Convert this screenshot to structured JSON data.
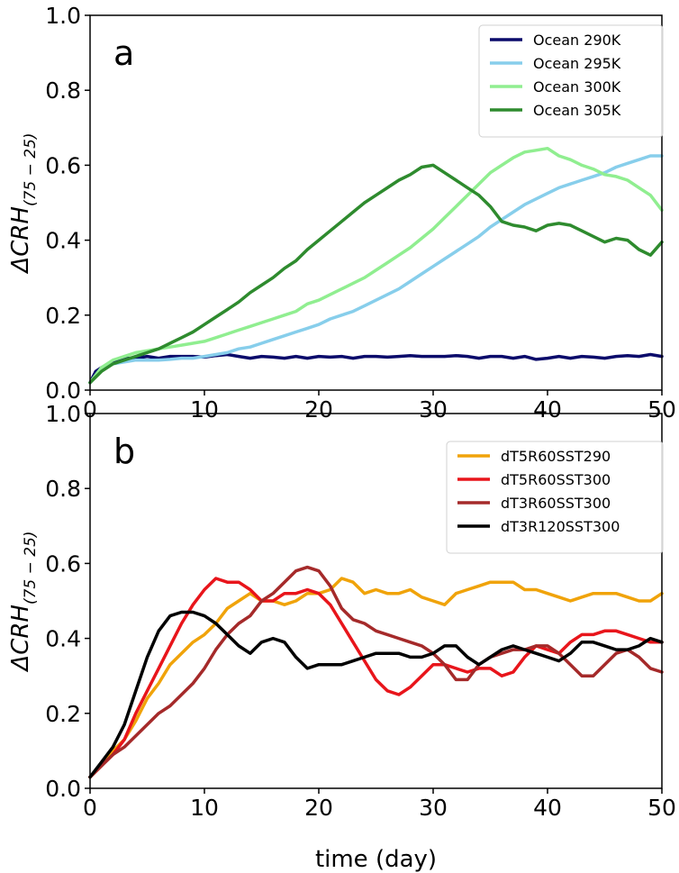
{
  "chart_data": [
    {
      "type": "line",
      "panel_label": "a",
      "xlabel": "",
      "ylabel": "ΔCRH",
      "ylabel_sub": "(75 − 25)",
      "xlim": [
        0,
        50
      ],
      "ylim": [
        0,
        1.0
      ],
      "xticks": [
        "0",
        "10",
        "20",
        "30",
        "40",
        "50"
      ],
      "yticks": [
        "0.0",
        "0.2",
        "0.4",
        "0.6",
        "0.8",
        "1.0"
      ],
      "legend_position": "top-right",
      "grid": false,
      "series": [
        {
          "name": "Ocean 290K",
          "color": "#0b0b6b",
          "x": [
            0,
            0.5,
            1,
            2,
            3,
            4,
            5,
            6,
            7,
            8,
            9,
            10,
            11,
            12,
            13,
            14,
            15,
            16,
            17,
            18,
            19,
            20,
            21,
            22,
            23,
            24,
            25,
            26,
            27,
            28,
            29,
            30,
            31,
            32,
            33,
            34,
            35,
            36,
            37,
            38,
            39,
            40,
            41,
            42,
            43,
            44,
            45,
            46,
            47,
            48,
            49,
            50
          ],
          "y": [
            0.02,
            0.05,
            0.06,
            0.075,
            0.085,
            0.085,
            0.09,
            0.085,
            0.09,
            0.09,
            0.09,
            0.088,
            0.092,
            0.095,
            0.09,
            0.085,
            0.09,
            0.088,
            0.085,
            0.09,
            0.085,
            0.09,
            0.088,
            0.09,
            0.085,
            0.09,
            0.09,
            0.088,
            0.09,
            0.092,
            0.09,
            0.09,
            0.09,
            0.092,
            0.09,
            0.085,
            0.09,
            0.09,
            0.085,
            0.09,
            0.082,
            0.085,
            0.09,
            0.085,
            0.09,
            0.088,
            0.085,
            0.09,
            0.092,
            0.09,
            0.095,
            0.09
          ]
        },
        {
          "name": "Ocean 295K",
          "color": "#87ceeb",
          "x": [
            0,
            1,
            2,
            3,
            4,
            5,
            6,
            7,
            8,
            9,
            10,
            11,
            12,
            13,
            14,
            15,
            16,
            17,
            18,
            19,
            20,
            21,
            22,
            23,
            24,
            25,
            26,
            27,
            28,
            29,
            30,
            31,
            32,
            33,
            34,
            35,
            36,
            37,
            38,
            39,
            40,
            41,
            42,
            43,
            44,
            45,
            46,
            47,
            48,
            49,
            50
          ],
          "y": [
            0.02,
            0.06,
            0.07,
            0.075,
            0.08,
            0.08,
            0.08,
            0.082,
            0.085,
            0.085,
            0.09,
            0.095,
            0.1,
            0.11,
            0.115,
            0.125,
            0.135,
            0.145,
            0.155,
            0.165,
            0.175,
            0.19,
            0.2,
            0.21,
            0.225,
            0.24,
            0.255,
            0.27,
            0.29,
            0.31,
            0.33,
            0.35,
            0.37,
            0.39,
            0.41,
            0.435,
            0.455,
            0.475,
            0.495,
            0.51,
            0.525,
            0.54,
            0.55,
            0.56,
            0.57,
            0.58,
            0.595,
            0.605,
            0.615,
            0.625,
            0.625
          ]
        },
        {
          "name": "Ocean 300K",
          "color": "#90ee90",
          "x": [
            0,
            1,
            2,
            3,
            4,
            5,
            6,
            7,
            8,
            9,
            10,
            11,
            12,
            13,
            14,
            15,
            16,
            17,
            18,
            19,
            20,
            21,
            22,
            23,
            24,
            25,
            26,
            27,
            28,
            29,
            30,
            31,
            32,
            33,
            34,
            35,
            36,
            37,
            38,
            39,
            40,
            41,
            42,
            43,
            44,
            45,
            46,
            47,
            48,
            49,
            50
          ],
          "y": [
            0.02,
            0.06,
            0.08,
            0.09,
            0.1,
            0.105,
            0.11,
            0.115,
            0.12,
            0.125,
            0.13,
            0.14,
            0.15,
            0.16,
            0.17,
            0.18,
            0.19,
            0.2,
            0.21,
            0.23,
            0.24,
            0.255,
            0.27,
            0.285,
            0.3,
            0.32,
            0.34,
            0.36,
            0.38,
            0.405,
            0.43,
            0.46,
            0.49,
            0.52,
            0.55,
            0.58,
            0.6,
            0.62,
            0.635,
            0.64,
            0.645,
            0.625,
            0.615,
            0.6,
            0.59,
            0.575,
            0.57,
            0.56,
            0.54,
            0.52,
            0.48
          ]
        },
        {
          "name": "Ocean 305K",
          "color": "#2e8b2e",
          "x": [
            0,
            1,
            2,
            3,
            4,
            5,
            6,
            7,
            8,
            9,
            10,
            11,
            12,
            13,
            14,
            15,
            16,
            17,
            18,
            19,
            20,
            21,
            22,
            23,
            24,
            25,
            26,
            27,
            28,
            29,
            30,
            31,
            32,
            33,
            34,
            35,
            36,
            37,
            38,
            39,
            40,
            41,
            42,
            43,
            44,
            45,
            46,
            47,
            48,
            49,
            50
          ],
          "y": [
            0.02,
            0.05,
            0.07,
            0.08,
            0.09,
            0.1,
            0.11,
            0.125,
            0.14,
            0.155,
            0.175,
            0.195,
            0.215,
            0.235,
            0.26,
            0.28,
            0.3,
            0.325,
            0.345,
            0.375,
            0.4,
            0.425,
            0.45,
            0.475,
            0.5,
            0.52,
            0.54,
            0.56,
            0.575,
            0.595,
            0.6,
            0.58,
            0.56,
            0.54,
            0.52,
            0.49,
            0.45,
            0.44,
            0.435,
            0.425,
            0.44,
            0.445,
            0.44,
            0.425,
            0.41,
            0.395,
            0.405,
            0.4,
            0.375,
            0.36,
            0.395
          ]
        }
      ]
    },
    {
      "type": "line",
      "panel_label": "b",
      "xlabel": "time (day)",
      "ylabel": "ΔCRH",
      "ylabel_sub": "(75 − 25)",
      "xlim": [
        0,
        50
      ],
      "ylim": [
        0,
        1.0
      ],
      "xticks": [
        "0",
        "10",
        "20",
        "30",
        "40",
        "50"
      ],
      "yticks": [
        "0.0",
        "0.2",
        "0.4",
        "0.6",
        "0.8",
        "1.0"
      ],
      "legend_position": "top-right",
      "grid": false,
      "series": [
        {
          "name": "dT5R60SST290",
          "color": "#f0a30a",
          "x": [
            0,
            1,
            2,
            3,
            4,
            5,
            6,
            7,
            8,
            9,
            10,
            11,
            12,
            13,
            14,
            15,
            16,
            17,
            18,
            19,
            20,
            21,
            22,
            23,
            24,
            25,
            26,
            27,
            28,
            29,
            30,
            31,
            32,
            33,
            34,
            35,
            36,
            37,
            38,
            39,
            40,
            41,
            42,
            43,
            44,
            45,
            46,
            47,
            48,
            49,
            50
          ],
          "y": [
            0.03,
            0.06,
            0.1,
            0.13,
            0.18,
            0.24,
            0.28,
            0.33,
            0.36,
            0.39,
            0.41,
            0.44,
            0.48,
            0.5,
            0.52,
            0.5,
            0.5,
            0.49,
            0.5,
            0.52,
            0.52,
            0.53,
            0.56,
            0.55,
            0.52,
            0.53,
            0.52,
            0.52,
            0.53,
            0.51,
            0.5,
            0.49,
            0.52,
            0.53,
            0.54,
            0.55,
            0.55,
            0.55,
            0.53,
            0.53,
            0.52,
            0.51,
            0.5,
            0.51,
            0.52,
            0.52,
            0.52,
            0.51,
            0.5,
            0.5,
            0.52
          ]
        },
        {
          "name": "dT5R60SST300",
          "color": "#e8151b",
          "x": [
            0,
            1,
            2,
            3,
            4,
            5,
            6,
            7,
            8,
            9,
            10,
            11,
            12,
            13,
            14,
            15,
            16,
            17,
            18,
            19,
            20,
            21,
            22,
            23,
            24,
            25,
            26,
            27,
            28,
            29,
            30,
            31,
            32,
            33,
            34,
            35,
            36,
            37,
            38,
            39,
            40,
            41,
            42,
            43,
            44,
            45,
            46,
            47,
            48,
            49,
            50
          ],
          "y": [
            0.03,
            0.06,
            0.09,
            0.13,
            0.2,
            0.26,
            0.32,
            0.38,
            0.44,
            0.49,
            0.53,
            0.56,
            0.55,
            0.55,
            0.53,
            0.5,
            0.5,
            0.52,
            0.52,
            0.53,
            0.52,
            0.49,
            0.44,
            0.39,
            0.34,
            0.29,
            0.26,
            0.25,
            0.27,
            0.3,
            0.33,
            0.33,
            0.32,
            0.31,
            0.32,
            0.32,
            0.3,
            0.31,
            0.35,
            0.38,
            0.37,
            0.36,
            0.39,
            0.41,
            0.41,
            0.42,
            0.42,
            0.41,
            0.4,
            0.39,
            0.39
          ]
        },
        {
          "name": "dT3R60SST300",
          "color": "#a52a2a",
          "x": [
            0,
            1,
            2,
            3,
            4,
            5,
            6,
            7,
            8,
            9,
            10,
            11,
            12,
            13,
            14,
            15,
            16,
            17,
            18,
            19,
            20,
            21,
            22,
            23,
            24,
            25,
            26,
            27,
            28,
            29,
            30,
            31,
            32,
            33,
            34,
            35,
            36,
            37,
            38,
            39,
            40,
            41,
            42,
            43,
            44,
            45,
            46,
            47,
            48,
            49,
            50
          ],
          "y": [
            0.03,
            0.06,
            0.09,
            0.11,
            0.14,
            0.17,
            0.2,
            0.22,
            0.25,
            0.28,
            0.32,
            0.37,
            0.41,
            0.44,
            0.46,
            0.5,
            0.52,
            0.55,
            0.58,
            0.59,
            0.58,
            0.54,
            0.48,
            0.45,
            0.44,
            0.42,
            0.41,
            0.4,
            0.39,
            0.38,
            0.36,
            0.33,
            0.29,
            0.29,
            0.33,
            0.35,
            0.36,
            0.37,
            0.37,
            0.38,
            0.38,
            0.36,
            0.33,
            0.3,
            0.3,
            0.33,
            0.36,
            0.37,
            0.35,
            0.32,
            0.31
          ]
        },
        {
          "name": "dT3R120SST300",
          "color": "#000000",
          "x": [
            0,
            1,
            2,
            3,
            4,
            5,
            6,
            7,
            8,
            9,
            10,
            11,
            12,
            13,
            14,
            15,
            16,
            17,
            18,
            19,
            20,
            21,
            22,
            23,
            24,
            25,
            26,
            27,
            28,
            29,
            30,
            31,
            32,
            33,
            34,
            35,
            36,
            37,
            38,
            39,
            40,
            41,
            42,
            43,
            44,
            45,
            46,
            47,
            48,
            49,
            50
          ],
          "y": [
            0.03,
            0.07,
            0.11,
            0.17,
            0.26,
            0.35,
            0.42,
            0.46,
            0.47,
            0.47,
            0.46,
            0.44,
            0.41,
            0.38,
            0.36,
            0.39,
            0.4,
            0.39,
            0.35,
            0.32,
            0.33,
            0.33,
            0.33,
            0.34,
            0.35,
            0.36,
            0.36,
            0.36,
            0.35,
            0.35,
            0.36,
            0.38,
            0.38,
            0.35,
            0.33,
            0.35,
            0.37,
            0.38,
            0.37,
            0.36,
            0.35,
            0.34,
            0.36,
            0.39,
            0.39,
            0.38,
            0.37,
            0.37,
            0.38,
            0.4,
            0.39
          ]
        }
      ]
    }
  ]
}
